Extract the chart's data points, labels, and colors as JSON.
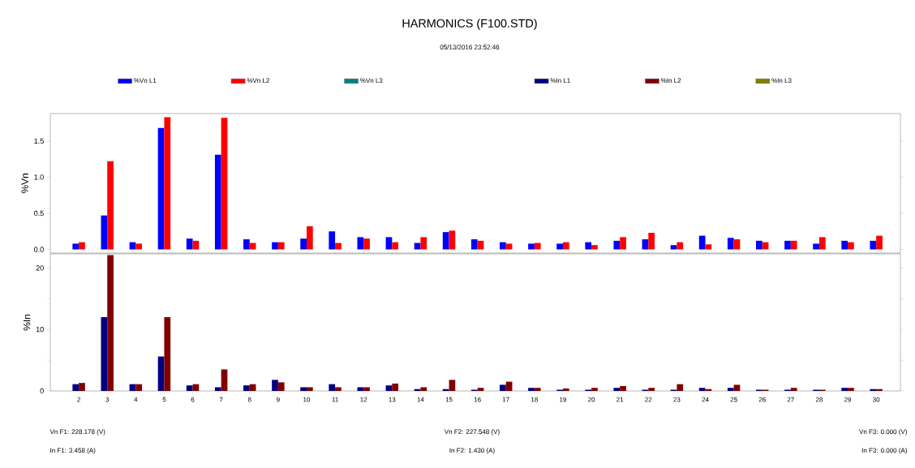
{
  "chart_data": [
    {
      "type": "bar",
      "title": "HARMONICS (F100.STD)",
      "subtitle": "05/13/2016 23:52:46",
      "ylabel": "%Vn",
      "categories": [
        "2",
        "3",
        "4",
        "5",
        "6",
        "7",
        "8",
        "9",
        "10",
        "11",
        "12",
        "13",
        "14",
        "15",
        "16",
        "17",
        "18",
        "19",
        "20",
        "21",
        "22",
        "23",
        "24",
        "25",
        "26",
        "27",
        "28",
        "29",
        "30"
      ],
      "series": [
        {
          "name": "%Vn L1",
          "color": "#0000ff",
          "values": [
            0.08,
            0.47,
            0.1,
            1.68,
            0.15,
            1.31,
            0.14,
            0.1,
            0.15,
            0.25,
            0.17,
            0.17,
            0.09,
            0.24,
            0.14,
            0.1,
            0.08,
            0.08,
            0.1,
            0.12,
            0.14,
            0.06,
            0.19,
            0.16,
            0.12,
            0.12,
            0.08,
            0.12,
            0.12
          ]
        },
        {
          "name": "%Vn L2",
          "color": "#ff0000",
          "values": [
            0.1,
            1.22,
            0.08,
            1.83,
            0.12,
            1.82,
            0.09,
            0.1,
            0.32,
            0.09,
            0.15,
            0.1,
            0.17,
            0.26,
            0.12,
            0.08,
            0.09,
            0.1,
            0.06,
            0.17,
            0.23,
            0.1,
            0.07,
            0.14,
            0.1,
            0.12,
            0.17,
            0.1,
            0.19
          ]
        },
        {
          "name": "%Vn L3",
          "color": "#008080",
          "values": [
            null,
            null,
            null,
            null,
            null,
            null,
            null,
            null,
            null,
            null,
            null,
            null,
            null,
            null,
            null,
            null,
            null,
            null,
            null,
            null,
            null,
            null,
            null,
            null,
            null,
            null,
            null,
            null,
            null
          ]
        }
      ],
      "ylim": [
        -0.05,
        1.88
      ],
      "yticks": [
        {
          "value": 0,
          "label": "0.0"
        },
        0.5,
        {
          "value": 1,
          "label": "1.0"
        },
        1.5
      ],
      "tick_labels": "y",
      "legend": "top"
    },
    {
      "type": "bar",
      "ylabel": "%In",
      "categories": [
        "2",
        "3",
        "4",
        "5",
        "6",
        "7",
        "8",
        "9",
        "10",
        "11",
        "12",
        "13",
        "14",
        "15",
        "16",
        "17",
        "18",
        "19",
        "20",
        "21",
        "22",
        "23",
        "24",
        "25",
        "26",
        "27",
        "28",
        "29",
        "30"
      ],
      "series": [
        {
          "name": "%In L1",
          "color": "#000080",
          "values": [
            1.1,
            12.0,
            1.1,
            5.6,
            0.9,
            0.6,
            0.9,
            1.8,
            0.6,
            1.1,
            0.6,
            0.9,
            0.3,
            0.3,
            0.2,
            1.0,
            0.5,
            0.2,
            0.2,
            0.5,
            0.2,
            0.2,
            0.5,
            0.5,
            0.2,
            0.2,
            0.2,
            0.5,
            0.3
          ]
        },
        {
          "name": "%In L2",
          "color": "#800000",
          "values": [
            1.3,
            22.1,
            1.1,
            12.0,
            1.1,
            3.5,
            1.1,
            1.4,
            0.6,
            0.6,
            0.6,
            1.2,
            0.6,
            1.8,
            0.5,
            1.5,
            0.5,
            0.4,
            0.5,
            0.8,
            0.5,
            1.1,
            0.3,
            1.0,
            0.2,
            0.5,
            0.2,
            0.5,
            0.3
          ]
        },
        {
          "name": "%In L3",
          "color": "#808000",
          "values": [
            null,
            null,
            null,
            null,
            null,
            null,
            null,
            null,
            null,
            null,
            null,
            null,
            null,
            null,
            null,
            null,
            null,
            null,
            null,
            null,
            null,
            null,
            null,
            null,
            null,
            null,
            null,
            null,
            null
          ]
        }
      ],
      "ylim": [
        0,
        22.3
      ],
      "yticks": [
        0,
        {
          "value": 5,
          "label": null
        },
        10,
        {
          "value": 15,
          "label": null
        },
        20
      ],
      "legend": "top",
      "annotations": [
        "Vn F1: 228.178 (V)",
        "In F1: 3.458 (A)",
        "Vn F2: 227.548 (V)",
        "In F2: 1.430 (A)",
        "Vn F3: 0.000 (V)",
        "In F3: 0.000 (A)"
      ]
    }
  ]
}
